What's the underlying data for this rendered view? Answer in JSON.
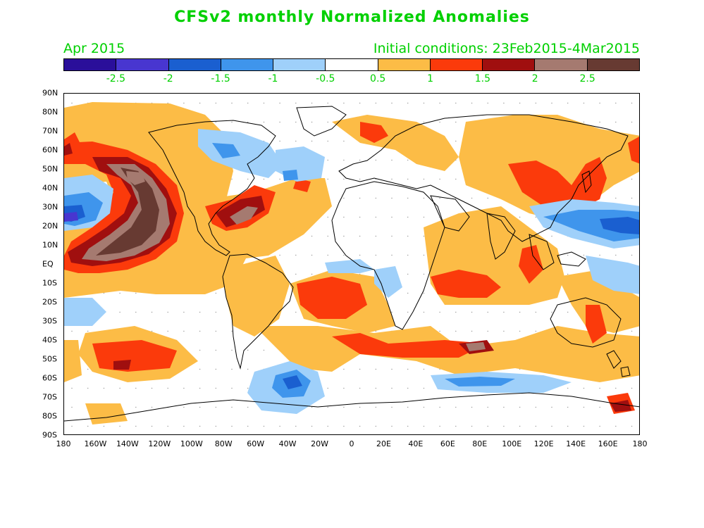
{
  "title": "CFSv2 monthly Normalized Anomalies",
  "month_label": "Apr 2015",
  "initial_conditions": "Initial conditions: 23Feb2015-4Mar2015",
  "colors": {
    "title_text": "#00d000",
    "levels": [
      "#2a0f9a",
      "#4836d0",
      "#1a5fd0",
      "#3f95ec",
      "#9fd0fa",
      "#ffffff",
      "#fcbc46",
      "#fb3a0b",
      "#a00f0f",
      "#a57a70",
      "#673a32"
    ]
  },
  "colorbar": {
    "labels": [
      "-2.5",
      "-2",
      "-1.5",
      "-1",
      "-0.5",
      "0.5",
      "1",
      "1.5",
      "2",
      "2.5"
    ]
  },
  "axes": {
    "lat_labels": [
      "90N",
      "80N",
      "70N",
      "60N",
      "50N",
      "40N",
      "30N",
      "20N",
      "10N",
      "EQ",
      "10S",
      "20S",
      "30S",
      "40S",
      "50S",
      "60S",
      "70S",
      "80S",
      "90S"
    ],
    "lon_labels": [
      "180",
      "160W",
      "140W",
      "120W",
      "100W",
      "80W",
      "60W",
      "40W",
      "20W",
      "0",
      "20E",
      "40E",
      "60E",
      "80E",
      "100E",
      "120E",
      "140E",
      "160E",
      "180"
    ]
  }
}
